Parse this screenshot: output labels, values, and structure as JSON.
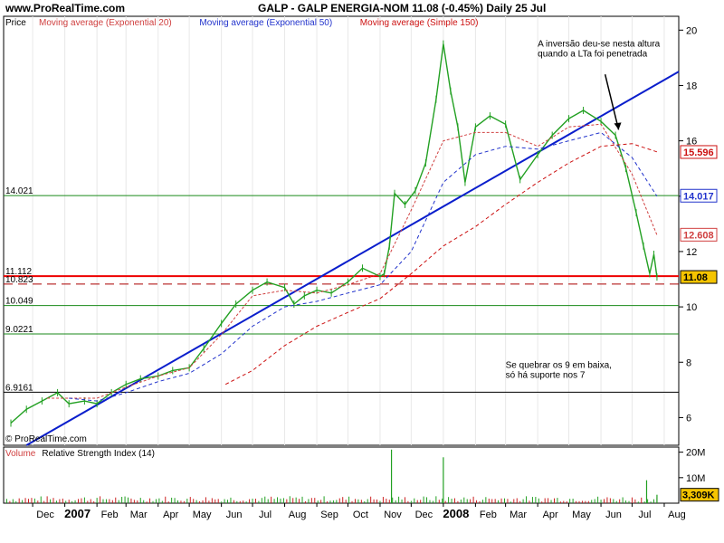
{
  "header": {
    "site": "www.ProRealTime.com",
    "instrument": "GALP - GALP ENERGIA-NOM     11.08 (-0.45%)     Daily  25 Jul"
  },
  "colors": {
    "price_up": "#22a022",
    "price_down": "#cc2222",
    "ema20": "#d04040",
    "ema50": "#2233cc",
    "sma150": "#cc1111",
    "trendline": "#0a1ecc",
    "support": "#1a8a1a",
    "resistance": "#ee0000"
  },
  "chart_data": [
    {
      "type": "line",
      "panel": "price",
      "legend": [
        {
          "label": "Price",
          "color": "#000000"
        },
        {
          "label": "Moving average (Exponential 20)",
          "color": "#d04040"
        },
        {
          "label": "Moving average (Exponential 50)",
          "color": "#2233cc"
        },
        {
          "label": "Moving average (Simple 150)",
          "color": "#cc1111"
        }
      ],
      "y_axis": {
        "min": 5,
        "max": 20.5,
        "ticks": [
          6,
          8,
          10,
          12,
          14,
          16,
          18,
          20
        ]
      },
      "x_axis": {
        "ticks": [
          {
            "label": "Dec",
            "x": "2006-12-01"
          },
          {
            "label": "2007",
            "x": "2007-01-01",
            "bold": true
          },
          {
            "label": "Feb",
            "x": "2007-02-01"
          },
          {
            "label": "Mar",
            "x": "2007-03-01"
          },
          {
            "label": "Apr",
            "x": "2007-04-01"
          },
          {
            "label": "May",
            "x": "2007-05-01"
          },
          {
            "label": "Jun",
            "x": "2007-06-01"
          },
          {
            "label": "Jul",
            "x": "2007-07-01"
          },
          {
            "label": "Aug",
            "x": "2007-08-01"
          },
          {
            "label": "Sep",
            "x": "2007-09-01"
          },
          {
            "label": "Oct",
            "x": "2007-10-01"
          },
          {
            "label": "Nov",
            "x": "2007-11-01"
          },
          {
            "label": "Dec",
            "x": "2007-12-01"
          },
          {
            "label": "2008",
            "x": "2008-01-01",
            "bold": true
          },
          {
            "label": "Feb",
            "x": "2008-02-01"
          },
          {
            "label": "Mar",
            "x": "2008-03-01"
          },
          {
            "label": "Apr",
            "x": "2008-04-01"
          },
          {
            "label": "May",
            "x": "2008-05-01"
          },
          {
            "label": "Jun",
            "x": "2008-06-01"
          },
          {
            "label": "Jul",
            "x": "2008-07-01"
          },
          {
            "label": "Aug",
            "x": "2008-08-01"
          }
        ]
      },
      "series": [
        {
          "name": "Price",
          "color": "#22a022",
          "points": [
            [
              "2006-11-10",
              5.8
            ],
            [
              "2006-11-25",
              6.3
            ],
            [
              "2006-12-10",
              6.6
            ],
            [
              "2006-12-25",
              6.9
            ],
            [
              "2007-01-05",
              6.5
            ],
            [
              "2007-01-20",
              6.6
            ],
            [
              "2007-02-01",
              6.5
            ],
            [
              "2007-02-15",
              6.9
            ],
            [
              "2007-03-01",
              7.2
            ],
            [
              "2007-03-15",
              7.4
            ],
            [
              "2007-04-01",
              7.5
            ],
            [
              "2007-04-15",
              7.7
            ],
            [
              "2007-05-01",
              7.8
            ],
            [
              "2007-05-15",
              8.5
            ],
            [
              "2007-06-01",
              9.4
            ],
            [
              "2007-06-15",
              10.1
            ],
            [
              "2007-07-01",
              10.6
            ],
            [
              "2007-07-15",
              10.9
            ],
            [
              "2007-08-01",
              10.7
            ],
            [
              "2007-08-10",
              10.1
            ],
            [
              "2007-08-20",
              10.4
            ],
            [
              "2007-09-01",
              10.6
            ],
            [
              "2007-09-15",
              10.5
            ],
            [
              "2007-10-01",
              10.9
            ],
            [
              "2007-10-15",
              11.4
            ],
            [
              "2007-11-01",
              11.1
            ],
            [
              "2007-11-05",
              11.2
            ],
            [
              "2007-11-10",
              12.2
            ],
            [
              "2007-11-15",
              14.1
            ],
            [
              "2007-11-25",
              13.7
            ],
            [
              "2007-12-05",
              14.2
            ],
            [
              "2007-12-15",
              15.2
            ],
            [
              "2007-12-25",
              17.5
            ],
            [
              "2008-01-01",
              19.5
            ],
            [
              "2008-01-08",
              17.8
            ],
            [
              "2008-01-15",
              16.5
            ],
            [
              "2008-01-22",
              14.5
            ],
            [
              "2008-02-01",
              16.5
            ],
            [
              "2008-02-15",
              16.9
            ],
            [
              "2008-03-01",
              16.6
            ],
            [
              "2008-03-15",
              14.6
            ],
            [
              "2008-04-01",
              15.5
            ],
            [
              "2008-04-15",
              16.2
            ],
            [
              "2008-05-01",
              16.8
            ],
            [
              "2008-05-15",
              17.1
            ],
            [
              "2008-06-01",
              16.7
            ],
            [
              "2008-06-15",
              16.2
            ],
            [
              "2008-06-25",
              15.0
            ],
            [
              "2008-07-05",
              13.4
            ],
            [
              "2008-07-12",
              12.2
            ],
            [
              "2008-07-18",
              11.2
            ],
            [
              "2008-07-22",
              11.9
            ],
            [
              "2008-07-25",
              11.08
            ]
          ]
        },
        {
          "name": "Moving average (Exponential 20)",
          "color": "#d04040",
          "dash": "3,2",
          "points": [
            [
              "2006-12-15",
              6.7
            ],
            [
              "2007-01-05",
              6.7
            ],
            [
              "2007-02-01",
              6.7
            ],
            [
              "2007-03-01",
              7.1
            ],
            [
              "2007-04-01",
              7.5
            ],
            [
              "2007-05-01",
              7.8
            ],
            [
              "2007-06-01",
              9.0
            ],
            [
              "2007-07-01",
              10.4
            ],
            [
              "2007-08-01",
              10.6
            ],
            [
              "2007-09-01",
              10.5
            ],
            [
              "2007-10-01",
              10.8
            ],
            [
              "2007-11-01",
              11.2
            ],
            [
              "2007-12-01",
              13.5
            ],
            [
              "2008-01-01",
              16.0
            ],
            [
              "2008-02-01",
              16.3
            ],
            [
              "2008-03-01",
              16.3
            ],
            [
              "2008-04-01",
              15.8
            ],
            [
              "2008-05-01",
              16.5
            ],
            [
              "2008-06-01",
              16.6
            ],
            [
              "2008-07-01",
              14.8
            ],
            [
              "2008-07-25",
              12.6
            ]
          ]
        },
        {
          "name": "Moving average (Exponential 50)",
          "color": "#2233cc",
          "dash": "4,3",
          "points": [
            [
              "2007-01-05",
              6.7
            ],
            [
              "2007-02-01",
              6.6
            ],
            [
              "2007-03-01",
              6.9
            ],
            [
              "2007-04-01",
              7.3
            ],
            [
              "2007-05-01",
              7.6
            ],
            [
              "2007-06-01",
              8.3
            ],
            [
              "2007-07-01",
              9.3
            ],
            [
              "2007-08-01",
              10.0
            ],
            [
              "2007-09-01",
              10.2
            ],
            [
              "2007-10-01",
              10.5
            ],
            [
              "2007-11-01",
              10.8
            ],
            [
              "2007-12-01",
              12.0
            ],
            [
              "2008-01-01",
              14.5
            ],
            [
              "2008-02-01",
              15.5
            ],
            [
              "2008-03-01",
              15.8
            ],
            [
              "2008-04-01",
              15.7
            ],
            [
              "2008-05-01",
              16.0
            ],
            [
              "2008-06-01",
              16.3
            ],
            [
              "2008-07-01",
              15.4
            ],
            [
              "2008-07-25",
              14.0
            ]
          ]
        },
        {
          "name": "Moving average (Simple 150)",
          "color": "#cc1111",
          "dash": "4,3",
          "points": [
            [
              "2007-06-05",
              7.2
            ],
            [
              "2007-07-01",
              7.7
            ],
            [
              "2007-08-01",
              8.6
            ],
            [
              "2007-09-01",
              9.3
            ],
            [
              "2007-10-01",
              9.8
            ],
            [
              "2007-11-01",
              10.3
            ],
            [
              "2007-12-01",
              11.2
            ],
            [
              "2008-01-01",
              12.2
            ],
            [
              "2008-02-01",
              12.9
            ],
            [
              "2008-03-01",
              13.7
            ],
            [
              "2008-04-01",
              14.5
            ],
            [
              "2008-05-01",
              15.2
            ],
            [
              "2008-06-01",
              15.8
            ],
            [
              "2008-07-01",
              15.9
            ],
            [
              "2008-07-25",
              15.6
            ]
          ]
        }
      ],
      "trendline": {
        "color": "#0a1ecc",
        "from": [
          "2006-11-25",
          5.0
        ],
        "to": [
          "2008-08-15",
          18.5
        ]
      },
      "horizontal_levels": [
        {
          "label": "14.021",
          "value": 14.021,
          "color": "#1a8a1a"
        },
        {
          "label": "11.112",
          "value": 11.112,
          "color": "#ee0000",
          "thick": true
        },
        {
          "label": "10.823",
          "value": 10.823,
          "color": "#aa0000",
          "dash": true
        },
        {
          "label": "10.049",
          "value": 10.049,
          "color": "#1a8a1a"
        },
        {
          "label": "9.0221",
          "value": 9.0221,
          "color": "#1a8a1a"
        },
        {
          "label": "6.9161",
          "value": 6.9161,
          "color": "#000000"
        }
      ],
      "last_value_tags": [
        {
          "label": "15.596",
          "value": 15.596,
          "color": "#cc1111"
        },
        {
          "label": "14.017",
          "value": 14.017,
          "color": "#2233cc"
        },
        {
          "label": "12.608",
          "value": 12.608,
          "color": "#d04040"
        },
        {
          "label": "11.08",
          "value": 11.08,
          "color": "#000000",
          "bg": "#f5c400"
        }
      ],
      "annotations": [
        {
          "lines": [
            "A inversão deu-se nesta altura",
            "quando a LTa foi penetrada"
          ],
          "x": "2008-04-01",
          "y": 19.4
        },
        {
          "lines": [
            "Se quebrar os 9 em baixa,",
            " só há suporte nos 7"
          ],
          "x": "2008-03-01",
          "y": 7.8
        }
      ],
      "arrow": {
        "from": [
          "2008-06-05",
          18.4
        ],
        "to": [
          "2008-06-18",
          16.4
        ]
      },
      "copyright": "© ProRealTime.com"
    },
    {
      "type": "bar",
      "panel": "volume",
      "legend": [
        {
          "label": "Volume",
          "color": "#d04040"
        },
        {
          "label": "Relative Strength Index (14)",
          "color": "#000000"
        }
      ],
      "y_axis": {
        "min": 0,
        "max": 22000000,
        "ticks": [
          {
            "label": "10M",
            "value": 10000000
          },
          {
            "label": "20M",
            "value": 20000000
          }
        ]
      },
      "last_value": {
        "label": "3,309K",
        "value": 3309000,
        "bg": "#f5c400"
      },
      "peaks": [
        {
          "x": "2007-11-12",
          "value": 21000000
        },
        {
          "x": "2008-01-01",
          "value": 18000000
        },
        {
          "x": "2008-07-15",
          "value": 9000000
        },
        {
          "x": "2008-07-25",
          "value": 3309000
        }
      ]
    }
  ]
}
